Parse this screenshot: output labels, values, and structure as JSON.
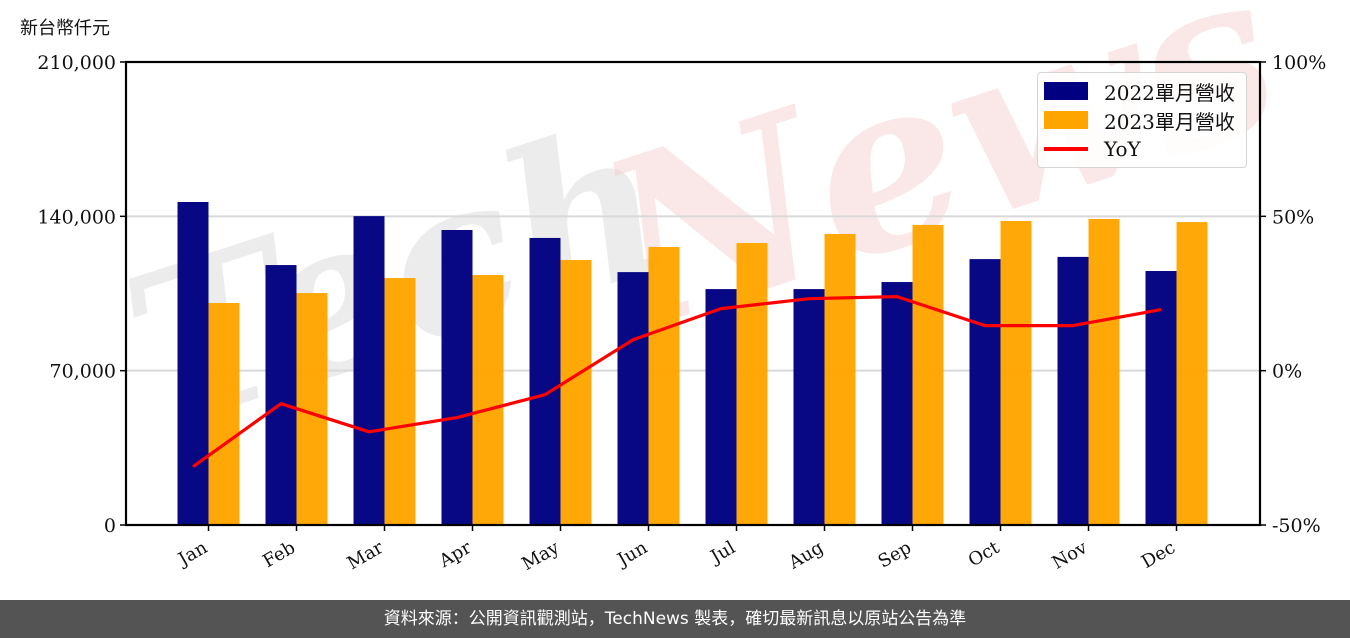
{
  "unit_label": "新台幣仟元",
  "footer": "資料來源：公開資訊觀測站，TechNews 製表，確切最新訊息以原站公告為準",
  "watermark": "TechNews",
  "legend": [
    {
      "label": "2022單月營收",
      "color": "#000080",
      "kind": "bar"
    },
    {
      "label": "2023單月營收",
      "color": "#FFA500",
      "kind": "bar"
    },
    {
      "label": "YoY",
      "color": "#FF0000",
      "kind": "line"
    }
  ],
  "chart_data": {
    "type": "bar",
    "title": "",
    "xlabel": "",
    "ylabel": "新台幣仟元",
    "categories": [
      "Jan",
      "Feb",
      "Mar",
      "Apr",
      "May",
      "Jun",
      "Jul",
      "Aug",
      "Sep",
      "Oct",
      "Nov",
      "Dec"
    ],
    "series": [
      {
        "name": "2022單月營收",
        "type": "bar",
        "axis": "left",
        "color": "#000080",
        "values": [
          146500,
          117900,
          140100,
          133800,
          130200,
          114700,
          107000,
          107000,
          110200,
          120600,
          121600,
          115200
        ]
      },
      {
        "name": "2023單月營收",
        "type": "bar",
        "axis": "left",
        "color": "#FFA500",
        "values": [
          100700,
          105200,
          112000,
          113400,
          120200,
          126100,
          127900,
          132000,
          136100,
          137900,
          138800,
          137400
        ]
      },
      {
        "name": "YoY",
        "type": "line",
        "axis": "right",
        "color": "#FF0000",
        "unit": "%",
        "values": [
          -31.1,
          -10.7,
          -19.8,
          -15.2,
          -7.8,
          10.0,
          20.1,
          23.3,
          24.0,
          14.6,
          14.6,
          19.8
        ]
      }
    ],
    "ylim": [
      0,
      210000
    ],
    "yticks": [
      0,
      70000,
      140000,
      210000
    ],
    "ytick_labels": [
      "0",
      "70,000",
      "140,000",
      "210,000"
    ],
    "y2lim": [
      -50,
      100
    ],
    "y2ticks": [
      -50,
      0,
      50,
      100
    ],
    "y2tick_labels": [
      "-50%",
      "0%",
      "50%",
      "100%"
    ],
    "grid": "horizontal",
    "legend_position": "upper right"
  }
}
